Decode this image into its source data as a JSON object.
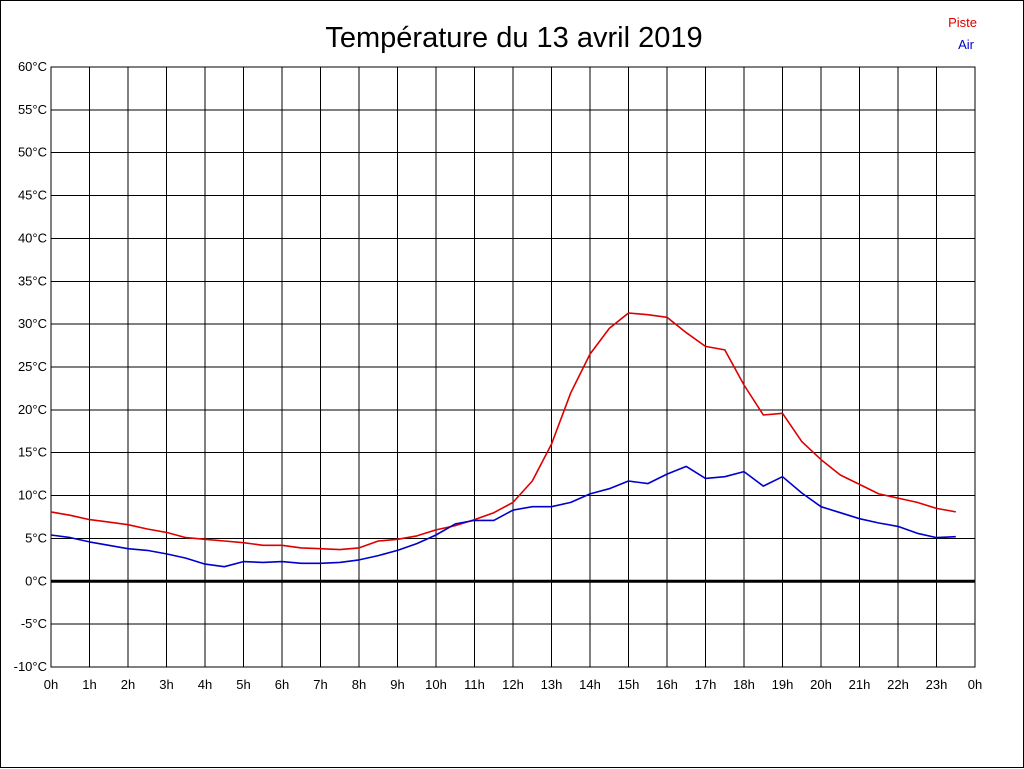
{
  "chart_data": {
    "type": "line",
    "title": "Température du 13 avril 2019",
    "xlabel": "",
    "ylabel": "",
    "x_ticks": [
      "0h",
      "1h",
      "2h",
      "3h",
      "4h",
      "5h",
      "6h",
      "7h",
      "8h",
      "9h",
      "10h",
      "11h",
      "12h",
      "13h",
      "14h",
      "15h",
      "16h",
      "17h",
      "18h",
      "19h",
      "20h",
      "21h",
      "22h",
      "23h",
      "0h"
    ],
    "y_ticks": [
      "-10°C",
      "-5°C",
      "0°C",
      "5°C",
      "10°C",
      "15°C",
      "20°C",
      "25°C",
      "30°C",
      "35°C",
      "40°C",
      "45°C",
      "50°C",
      "55°C",
      "60°C"
    ],
    "xlim": [
      0,
      24
    ],
    "ylim": [
      -10,
      60
    ],
    "grid": true,
    "legend_position": "top-right",
    "zero_line": 0,
    "series": [
      {
        "name": "Piste",
        "color": "#dd0000",
        "x": [
          0,
          0.5,
          1,
          1.5,
          2,
          2.5,
          3,
          3.5,
          4,
          4.5,
          5,
          5.5,
          6,
          6.5,
          7,
          7.5,
          8,
          8.5,
          9,
          9.5,
          10,
          10.5,
          11,
          11.5,
          12,
          12.5,
          13,
          13.5,
          14,
          14.5,
          15,
          15.5,
          16,
          16.5,
          17,
          17.5,
          18,
          18.5,
          19,
          19.5,
          20,
          20.5,
          21,
          21.5,
          22,
          22.5,
          23,
          23.5
        ],
        "values": [
          8.1,
          7.7,
          7.2,
          6.9,
          6.6,
          6.1,
          5.7,
          5.1,
          4.9,
          4.7,
          4.5,
          4.2,
          4.2,
          3.9,
          3.8,
          3.7,
          3.9,
          4.7,
          4.9,
          5.3,
          6.0,
          6.5,
          7.2,
          8.0,
          9.2,
          11.7,
          16.0,
          22.0,
          26.5,
          29.5,
          31.3,
          31.1,
          30.8,
          29.0,
          27.4,
          27.0,
          22.9,
          19.4,
          19.6,
          16.3,
          14.2,
          12.4,
          11.3,
          10.2,
          9.7,
          9.2,
          8.5,
          8.1
        ]
      },
      {
        "name": "Air",
        "color": "#0000cc",
        "x": [
          0,
          0.5,
          1,
          1.5,
          2,
          2.5,
          3,
          3.5,
          4,
          4.5,
          5,
          5.5,
          6,
          6.5,
          7,
          7.5,
          8,
          8.5,
          9,
          9.5,
          10,
          10.5,
          11,
          11.5,
          12,
          12.5,
          13,
          13.5,
          14,
          14.5,
          15,
          15.5,
          16,
          16.5,
          17,
          17.5,
          18,
          18.5,
          19,
          19.5,
          20,
          20.5,
          21,
          21.5,
          22,
          22.5,
          23,
          23.5
        ],
        "values": [
          5.4,
          5.1,
          4.6,
          4.2,
          3.8,
          3.6,
          3.2,
          2.7,
          2.0,
          1.7,
          2.3,
          2.2,
          2.3,
          2.1,
          2.1,
          2.2,
          2.5,
          3.0,
          3.6,
          4.4,
          5.4,
          6.7,
          7.1,
          7.1,
          8.3,
          8.7,
          8.7,
          9.2,
          10.2,
          10.8,
          11.7,
          11.4,
          12.5,
          13.4,
          12.0,
          12.2,
          12.8,
          11.1,
          12.2,
          10.3,
          8.7,
          8.0,
          7.3,
          6.8,
          6.4,
          5.6,
          5.1,
          5.2
        ]
      }
    ]
  }
}
